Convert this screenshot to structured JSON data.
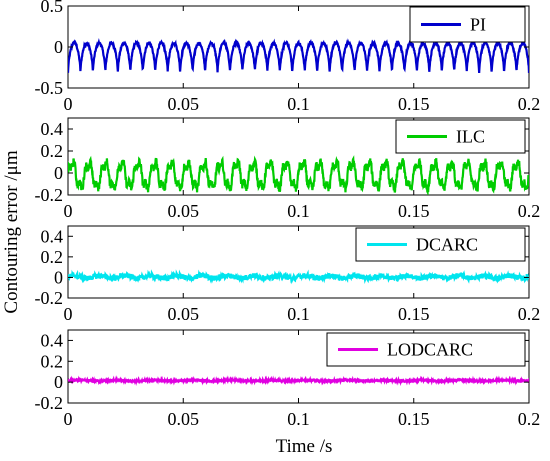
{
  "figure": {
    "xlabel": "Time /s",
    "ylabel": "Contouring error /μm"
  },
  "chart_data": [
    {
      "type": "line",
      "series": [
        {
          "name": "PI",
          "color": "#0000cc",
          "waveform": "periodic ripple between about -0.32 and 0.05 μm, 37 periods over 0.2 s"
        }
      ],
      "xlim": [
        0,
        0.2
      ],
      "ylim": [
        -0.5,
        0.5
      ],
      "xticks": [
        "0",
        "0.05",
        "0.1",
        "0.15",
        "0.2"
      ],
      "yticks": [
        "0.5",
        "0",
        "-0.5"
      ],
      "legend": "top-right"
    },
    {
      "type": "line",
      "series": [
        {
          "name": "ILC",
          "color": "#00cc00",
          "waveform": "periodic ripple between about -0.17 and 0.13 μm, 28 periods over 0.2 s"
        }
      ],
      "xlim": [
        0,
        0.2
      ],
      "ylim": [
        -0.2,
        0.5
      ],
      "xticks": [
        "0",
        "0.05",
        "0.1",
        "0.15",
        "0.2"
      ],
      "yticks": [
        "0.4",
        "0.2",
        "0",
        "-0.2"
      ],
      "legend": "top-right"
    },
    {
      "type": "line",
      "series": [
        {
          "name": "DCARC",
          "color": "#00e5ee",
          "waveform": "noise around 0 within about ±0.04 μm"
        }
      ],
      "xlim": [
        0,
        0.2
      ],
      "ylim": [
        -0.2,
        0.5
      ],
      "xticks": [
        "0",
        "0.05",
        "0.1",
        "0.15",
        "0.2"
      ],
      "yticks": [
        "0.4",
        "0.2",
        "0",
        "-0.2"
      ],
      "legend": "top-right"
    },
    {
      "type": "line",
      "series": [
        {
          "name": "LODCARC",
          "color": "#e000e0",
          "waveform": "noise around 0.015 within about ±0.012 μm"
        }
      ],
      "xlim": [
        0,
        0.2
      ],
      "ylim": [
        -0.2,
        0.5
      ],
      "xticks": [
        "0",
        "0.05",
        "0.1",
        "0.15",
        "0.2"
      ],
      "yticks": [
        "0.4",
        "0.2",
        "0",
        "-0.2"
      ],
      "legend": "top-right"
    }
  ]
}
